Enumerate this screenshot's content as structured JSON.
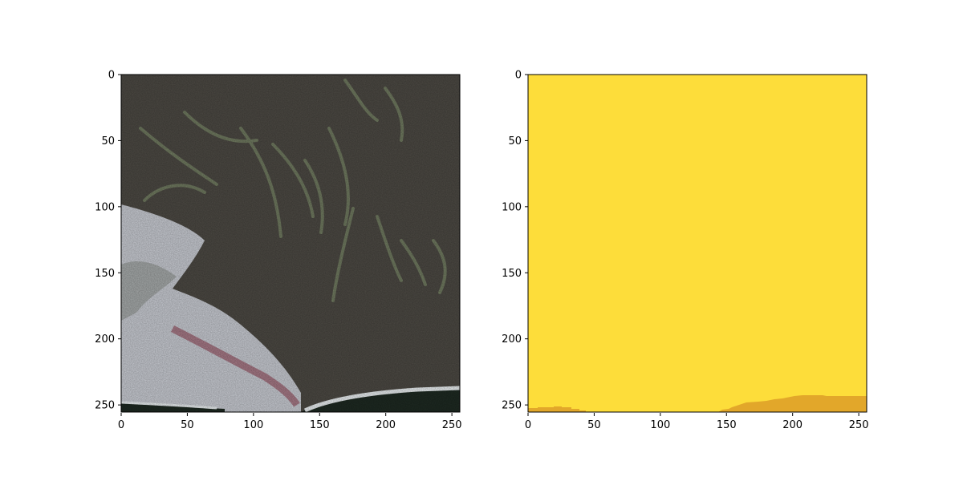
{
  "figure": {
    "background": "#ffffff"
  },
  "panels": [
    {
      "kind": "satellite-image",
      "x_ticks": [
        "0",
        "50",
        "100",
        "150",
        "200",
        "250"
      ],
      "y_ticks": [
        "0",
        "50",
        "100",
        "150",
        "200",
        "250"
      ],
      "colors": {
        "vegetation": "#55524b",
        "vegetation_dark": "#3f3d38",
        "ridge": "#7c8a6a",
        "sand": "#c9ccd3",
        "water": "#1e2a22",
        "surf": "#e9eef0",
        "rock": "#a06a78"
      }
    },
    {
      "kind": "segmentation-mask",
      "x_ticks": [
        "0",
        "50",
        "100",
        "150",
        "200",
        "250"
      ],
      "y_ticks": [
        "0",
        "50",
        "100",
        "150",
        "200",
        "250"
      ],
      "colors": {
        "class_land": "#fddd3a",
        "class_shore": "#e2a72a"
      }
    }
  ]
}
